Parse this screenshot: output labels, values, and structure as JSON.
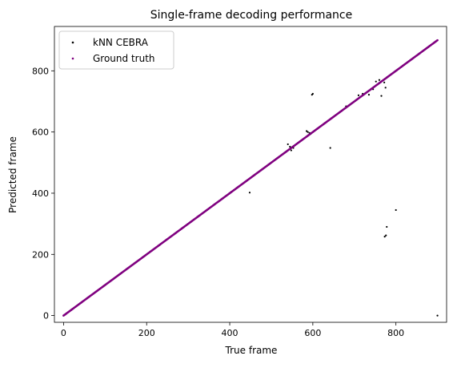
{
  "chart_data": {
    "type": "scatter",
    "title": "Single-frame decoding performance",
    "xlabel": "True frame",
    "ylabel": "Predicted frame",
    "xlim": [
      -22,
      922
    ],
    "ylim": [
      -22,
      945
    ],
    "xticks": [
      0,
      200,
      400,
      600,
      800
    ],
    "yticks": [
      0,
      200,
      400,
      600,
      800
    ],
    "grid": false,
    "legend_position": "top-left",
    "series": [
      {
        "name": "kNN CEBRA",
        "color": "#000000",
        "diagonal_range": [
          0,
          900
        ],
        "outliers": [
          {
            "x": 598,
            "y": 722
          },
          {
            "x": 600,
            "y": 725
          },
          {
            "x": 585,
            "y": 603
          },
          {
            "x": 588,
            "y": 600
          },
          {
            "x": 592,
            "y": 597
          },
          {
            "x": 595,
            "y": 594
          },
          {
            "x": 540,
            "y": 560
          },
          {
            "x": 545,
            "y": 552
          },
          {
            "x": 548,
            "y": 540
          },
          {
            "x": 553,
            "y": 548
          },
          {
            "x": 642,
            "y": 548
          },
          {
            "x": 448,
            "y": 402
          },
          {
            "x": 710,
            "y": 720
          },
          {
            "x": 720,
            "y": 725
          },
          {
            "x": 735,
            "y": 722
          },
          {
            "x": 745,
            "y": 740
          },
          {
            "x": 752,
            "y": 765
          },
          {
            "x": 760,
            "y": 770
          },
          {
            "x": 765,
            "y": 718
          },
          {
            "x": 772,
            "y": 762
          },
          {
            "x": 775,
            "y": 745
          },
          {
            "x": 800,
            "y": 345
          },
          {
            "x": 778,
            "y": 290
          },
          {
            "x": 776,
            "y": 262
          },
          {
            "x": 773,
            "y": 258
          },
          {
            "x": 900,
            "y": 0
          },
          {
            "x": 404,
            "y": 405
          },
          {
            "x": 690,
            "y": 690
          },
          {
            "x": 680,
            "y": 684
          }
        ]
      },
      {
        "name": "Ground truth",
        "color": "#800080",
        "diagonal_range": [
          0,
          900
        ]
      }
    ]
  }
}
